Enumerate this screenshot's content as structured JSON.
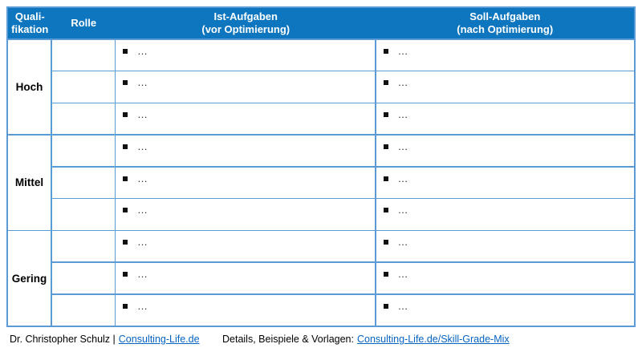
{
  "colors": {
    "header_bg": "#0d76be",
    "grid_line": "#5b9bd5",
    "link": "#0563c1",
    "bullet": "#111111"
  },
  "table": {
    "header": {
      "qualification_line1": "Quali-",
      "qualification_line2": "fikation",
      "role": "Rolle",
      "ist_line1": "Ist-Aufgaben",
      "ist_line2": "(vor Optimierung)",
      "soll_line1": "Soll-Aufgaben",
      "soll_line2": "(nach Optimierung)"
    },
    "bullet_icon": "square-bullet",
    "groups": [
      {
        "label": "Hoch",
        "rows": [
          {
            "role": "",
            "ist": "…",
            "soll": "…"
          },
          {
            "role": "",
            "ist": "…",
            "soll": "…"
          },
          {
            "role": "",
            "ist": "…",
            "soll": "…"
          }
        ]
      },
      {
        "label": "Mittel",
        "rows": [
          {
            "role": "",
            "ist": "…",
            "soll": "…"
          },
          {
            "role": "",
            "ist": "…",
            "soll": "…"
          },
          {
            "role": "",
            "ist": "…",
            "soll": "…"
          }
        ]
      },
      {
        "label": "Gering",
        "rows": [
          {
            "role": "",
            "ist": "…",
            "soll": "…"
          },
          {
            "role": "",
            "ist": "…",
            "soll": "…"
          },
          {
            "role": "",
            "ist": "…",
            "soll": "…"
          }
        ]
      }
    ]
  },
  "footer": {
    "author_prefix": "Dr. Christopher Schulz |",
    "author_link": "Consulting-Life.de",
    "details_prefix": "Details, Beispiele & Vorlagen:",
    "details_link": "Consulting-Life.de/Skill-Grade-Mix"
  }
}
